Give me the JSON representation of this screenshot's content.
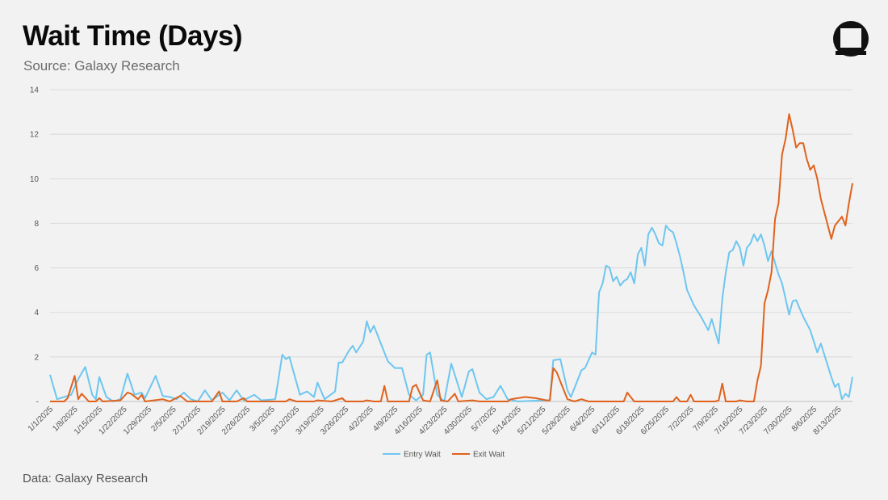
{
  "title": "Wait Time (Days)",
  "subtitle": "Source: Galaxy Research",
  "footer": "Data: Galaxy Research",
  "chart_data": {
    "type": "line",
    "title": "Wait Time (Days)",
    "xlabel": "",
    "ylabel": "",
    "ylim": [
      0,
      14
    ],
    "yticks": [
      0,
      2,
      4,
      6,
      8,
      10,
      12,
      14
    ],
    "grid": "horizontal",
    "legend_position": "bottom-center",
    "x_start": "1/1/2025",
    "x_end": "8/13/2025",
    "x_tick_labels": [
      "1/1/2025",
      "1/8/2025",
      "1/15/2025",
      "1/22/2025",
      "1/29/2025",
      "2/5/2025",
      "2/12/2025",
      "2/19/2025",
      "2/26/2025",
      "3/5/2025",
      "3/12/2025",
      "3/19/2025",
      "3/26/2025",
      "4/2/2025",
      "4/9/2025",
      "4/16/2025",
      "4/23/2025",
      "4/30/2025",
      "5/7/2025",
      "5/14/2025",
      "5/21/2025",
      "5/28/2025",
      "6/4/2025",
      "6/11/2025",
      "6/18/2025",
      "6/25/2025",
      "7/2/2025",
      "7/9/2025",
      "7/16/2025",
      "7/23/2025",
      "7/30/2025",
      "8/6/2025",
      "8/13/2025"
    ],
    "series": [
      {
        "name": "Entry Wait",
        "color": "#6ec6f0",
        "points": [
          [
            "1/1/2025",
            1.2
          ],
          [
            "1/3/2025",
            0.1
          ],
          [
            "1/5/2025",
            0.2
          ],
          [
            "1/7/2025",
            0.3
          ],
          [
            "1/9/2025",
            1.0
          ],
          [
            "1/11/2025",
            1.55
          ],
          [
            "1/13/2025",
            0.3
          ],
          [
            "1/14/2025",
            0.1
          ],
          [
            "1/15/2025",
            1.1
          ],
          [
            "1/17/2025",
            0.2
          ],
          [
            "1/19/2025",
            0.0
          ],
          [
            "1/21/2025",
            0.1
          ],
          [
            "1/23/2025",
            1.25
          ],
          [
            "1/25/2025",
            0.3
          ],
          [
            "1/27/2025",
            0.4
          ],
          [
            "1/28/2025",
            0.15
          ],
          [
            "1/31/2025",
            1.15
          ],
          [
            "2/2/2025",
            0.25
          ],
          [
            "2/4/2025",
            0.2
          ],
          [
            "2/6/2025",
            0.1
          ],
          [
            "2/8/2025",
            0.4
          ],
          [
            "2/10/2025",
            0.1
          ],
          [
            "2/12/2025",
            0.0
          ],
          [
            "2/14/2025",
            0.5
          ],
          [
            "2/16/2025",
            0.05
          ],
          [
            "2/19/2025",
            0.4
          ],
          [
            "2/21/2025",
            0.05
          ],
          [
            "2/23/2025",
            0.5
          ],
          [
            "2/25/2025",
            0.05
          ],
          [
            "2/28/2025",
            0.3
          ],
          [
            "3/2/2025",
            0.05
          ],
          [
            "3/6/2025",
            0.1
          ],
          [
            "3/8/2025",
            2.1
          ],
          [
            "3/9/2025",
            1.9
          ],
          [
            "3/10/2025",
            2.0
          ],
          [
            "3/13/2025",
            0.3
          ],
          [
            "3/15/2025",
            0.45
          ],
          [
            "3/17/2025",
            0.2
          ],
          [
            "3/18/2025",
            0.85
          ],
          [
            "3/20/2025",
            0.1
          ],
          [
            "3/23/2025",
            0.45
          ],
          [
            "3/24/2025",
            1.75
          ],
          [
            "3/25/2025",
            1.75
          ],
          [
            "3/27/2025",
            2.3
          ],
          [
            "3/28/2025",
            2.5
          ],
          [
            "3/29/2025",
            2.2
          ],
          [
            "3/31/2025",
            2.7
          ],
          [
            "4/1/2025",
            3.6
          ],
          [
            "4/2/2025",
            3.1
          ],
          [
            "4/3/2025",
            3.4
          ],
          [
            "4/5/2025",
            2.6
          ],
          [
            "4/7/2025",
            1.8
          ],
          [
            "4/9/2025",
            1.5
          ],
          [
            "4/11/2025",
            1.5
          ],
          [
            "4/13/2025",
            0.3
          ],
          [
            "4/15/2025",
            0.05
          ],
          [
            "4/17/2025",
            0.3
          ],
          [
            "4/18/2025",
            2.1
          ],
          [
            "4/19/2025",
            2.2
          ],
          [
            "4/21/2025",
            0.3
          ],
          [
            "4/23/2025",
            0.0
          ],
          [
            "4/25/2025",
            1.7
          ],
          [
            "4/28/2025",
            0.2
          ],
          [
            "4/30/2025",
            1.35
          ],
          [
            "5/1/2025",
            1.45
          ],
          [
            "5/3/2025",
            0.4
          ],
          [
            "5/5/2025",
            0.1
          ],
          [
            "5/7/2025",
            0.2
          ],
          [
            "5/9/2025",
            0.7
          ],
          [
            "5/11/2025",
            0.1
          ],
          [
            "5/14/2025",
            0.0
          ],
          [
            "5/21/2025",
            0.05
          ],
          [
            "5/23/2025",
            0.05
          ],
          [
            "5/24/2025",
            1.85
          ],
          [
            "5/26/2025",
            1.9
          ],
          [
            "5/28/2025",
            0.5
          ],
          [
            "5/29/2025",
            0.2
          ],
          [
            "5/30/2025",
            0.6
          ],
          [
            "6/1/2025",
            1.4
          ],
          [
            "6/2/2025",
            1.5
          ],
          [
            "6/4/2025",
            2.2
          ],
          [
            "6/5/2025",
            2.1
          ],
          [
            "6/6/2025",
            4.9
          ],
          [
            "6/7/2025",
            5.3
          ],
          [
            "6/8/2025",
            6.1
          ],
          [
            "6/9/2025",
            6.0
          ],
          [
            "6/10/2025",
            5.4
          ],
          [
            "6/11/2025",
            5.6
          ],
          [
            "6/12/2025",
            5.2
          ],
          [
            "6/13/2025",
            5.4
          ],
          [
            "6/14/2025",
            5.5
          ],
          [
            "6/15/2025",
            5.8
          ],
          [
            "6/16/2025",
            5.3
          ],
          [
            "6/17/2025",
            6.6
          ],
          [
            "6/18/2025",
            6.9
          ],
          [
            "6/19/2025",
            6.1
          ],
          [
            "6/20/2025",
            7.5
          ],
          [
            "6/21/2025",
            7.8
          ],
          [
            "6/22/2025",
            7.5
          ],
          [
            "6/23/2025",
            7.1
          ],
          [
            "6/24/2025",
            7.0
          ],
          [
            "6/25/2025",
            7.9
          ],
          [
            "6/26/2025",
            7.7
          ],
          [
            "6/27/2025",
            7.6
          ],
          [
            "6/28/2025",
            7.1
          ],
          [
            "6/29/2025",
            6.5
          ],
          [
            "6/30/2025",
            5.8
          ],
          [
            "7/1/2025",
            5.0
          ],
          [
            "7/3/2025",
            4.3
          ],
          [
            "7/5/2025",
            3.8
          ],
          [
            "7/7/2025",
            3.2
          ],
          [
            "7/8/2025",
            3.7
          ],
          [
            "7/10/2025",
            2.6
          ],
          [
            "7/11/2025",
            4.6
          ],
          [
            "7/12/2025",
            5.8
          ],
          [
            "7/13/2025",
            6.7
          ],
          [
            "7/14/2025",
            6.8
          ],
          [
            "7/15/2025",
            7.2
          ],
          [
            "7/16/2025",
            6.9
          ],
          [
            "7/17/2025",
            6.1
          ],
          [
            "7/18/2025",
            6.9
          ],
          [
            "7/19/2025",
            7.1
          ],
          [
            "7/20/2025",
            7.5
          ],
          [
            "7/21/2025",
            7.2
          ],
          [
            "7/22/2025",
            7.5
          ],
          [
            "7/23/2025",
            7.0
          ],
          [
            "7/24/2025",
            6.3
          ],
          [
            "7/25/2025",
            6.75
          ],
          [
            "7/27/2025",
            5.7
          ],
          [
            "7/28/2025",
            5.3
          ],
          [
            "7/29/2025",
            4.6
          ],
          [
            "7/30/2025",
            3.9
          ],
          [
            "7/31/2025",
            4.5
          ],
          [
            "8/1/2025",
            4.55
          ],
          [
            "8/3/2025",
            3.8
          ],
          [
            "8/5/2025",
            3.2
          ],
          [
            "8/7/2025",
            2.2
          ],
          [
            "8/8/2025",
            2.6
          ],
          [
            "8/10/2025",
            1.6
          ],
          [
            "8/11/2025",
            1.1
          ],
          [
            "8/12/2025",
            0.65
          ],
          [
            "8/13/2025",
            0.8
          ],
          [
            "8/14/2025",
            0.1
          ],
          [
            "8/15/2025",
            0.35
          ],
          [
            "8/16/2025",
            0.2
          ],
          [
            "8/17/2025",
            1.1
          ]
        ]
      },
      {
        "name": "Exit Wait",
        "color": "#e0621c",
        "points": [
          [
            "1/1/2025",
            0.0
          ],
          [
            "1/5/2025",
            0.0
          ],
          [
            "1/6/2025",
            0.15
          ],
          [
            "1/8/2025",
            1.15
          ],
          [
            "1/9/2025",
            0.1
          ],
          [
            "1/10/2025",
            0.35
          ],
          [
            "1/12/2025",
            0.0
          ],
          [
            "1/14/2025",
            0.0
          ],
          [
            "1/15/2025",
            0.15
          ],
          [
            "1/16/2025",
            0.0
          ],
          [
            "1/21/2025",
            0.05
          ],
          [
            "1/23/2025",
            0.4
          ],
          [
            "1/24/2025",
            0.35
          ],
          [
            "1/26/2025",
            0.1
          ],
          [
            "1/27/2025",
            0.3
          ],
          [
            "1/28/2025",
            0.0
          ],
          [
            "2/2/2025",
            0.1
          ],
          [
            "2/4/2025",
            0.0
          ],
          [
            "2/7/2025",
            0.25
          ],
          [
            "2/9/2025",
            0.0
          ],
          [
            "2/16/2025",
            0.0
          ],
          [
            "2/18/2025",
            0.45
          ],
          [
            "2/19/2025",
            0.0
          ],
          [
            "2/23/2025",
            0.0
          ],
          [
            "2/25/2025",
            0.15
          ],
          [
            "2/26/2025",
            0.0
          ],
          [
            "3/9/2025",
            0.0
          ],
          [
            "3/10/2025",
            0.1
          ],
          [
            "3/12/2025",
            0.0
          ],
          [
            "3/17/2025",
            0.0
          ],
          [
            "3/18/2025",
            0.05
          ],
          [
            "3/22/2025",
            0.0
          ],
          [
            "3/25/2025",
            0.15
          ],
          [
            "3/26/2025",
            0.0
          ],
          [
            "3/31/2025",
            0.0
          ],
          [
            "4/1/2025",
            0.05
          ],
          [
            "4/3/2025",
            0.0
          ],
          [
            "4/5/2025",
            0.0
          ],
          [
            "4/6/2025",
            0.7
          ],
          [
            "4/7/2025",
            0.0
          ],
          [
            "4/13/2025",
            0.0
          ],
          [
            "4/14/2025",
            0.65
          ],
          [
            "4/15/2025",
            0.75
          ],
          [
            "4/17/2025",
            0.05
          ],
          [
            "4/19/2025",
            0.0
          ],
          [
            "4/21/2025",
            0.95
          ],
          [
            "4/22/2025",
            0.05
          ],
          [
            "4/24/2025",
            0.0
          ],
          [
            "4/26/2025",
            0.35
          ],
          [
            "4/27/2025",
            0.0
          ],
          [
            "5/1/2025",
            0.05
          ],
          [
            "5/3/2025",
            0.0
          ],
          [
            "5/11/2025",
            0.0
          ],
          [
            "5/12/2025",
            0.1
          ],
          [
            "5/16/2025",
            0.2
          ],
          [
            "5/19/2025",
            0.15
          ],
          [
            "5/22/2025",
            0.05
          ],
          [
            "5/23/2025",
            0.05
          ],
          [
            "5/24/2025",
            1.5
          ],
          [
            "5/25/2025",
            1.3
          ],
          [
            "5/26/2025",
            0.9
          ],
          [
            "5/28/2025",
            0.1
          ],
          [
            "5/30/2025",
            0.0
          ],
          [
            "6/1/2025",
            0.1
          ],
          [
            "6/3/2025",
            0.0
          ],
          [
            "6/13/2025",
            0.0
          ],
          [
            "6/14/2025",
            0.4
          ],
          [
            "6/15/2025",
            0.2
          ],
          [
            "6/16/2025",
            0.0
          ],
          [
            "6/27/2025",
            0.0
          ],
          [
            "6/28/2025",
            0.2
          ],
          [
            "6/29/2025",
            0.0
          ],
          [
            "7/1/2025",
            0.0
          ],
          [
            "7/2/2025",
            0.3
          ],
          [
            "7/3/2025",
            0.0
          ],
          [
            "7/9/2025",
            0.0
          ],
          [
            "7/10/2025",
            0.05
          ],
          [
            "7/11/2025",
            0.8
          ],
          [
            "7/12/2025",
            0.0
          ],
          [
            "7/15/2025",
            0.0
          ],
          [
            "7/16/2025",
            0.05
          ],
          [
            "7/18/2025",
            0.0
          ],
          [
            "7/20/2025",
            0.0
          ],
          [
            "7/21/2025",
            0.95
          ],
          [
            "7/22/2025",
            1.6
          ],
          [
            "7/23/2025",
            4.4
          ],
          [
            "7/24/2025",
            5.0
          ],
          [
            "7/25/2025",
            5.8
          ],
          [
            "7/26/2025",
            8.2
          ],
          [
            "7/27/2025",
            8.9
          ],
          [
            "7/28/2025",
            11.1
          ],
          [
            "7/29/2025",
            11.8
          ],
          [
            "7/30/2025",
            12.9
          ],
          [
            "7/31/2025",
            12.2
          ],
          [
            "8/1/2025",
            11.4
          ],
          [
            "8/2/2025",
            11.6
          ],
          [
            "8/3/2025",
            11.6
          ],
          [
            "8/4/2025",
            10.9
          ],
          [
            "8/5/2025",
            10.4
          ],
          [
            "8/6/2025",
            10.6
          ],
          [
            "8/7/2025",
            10.0
          ],
          [
            "8/8/2025",
            9.1
          ],
          [
            "8/9/2025",
            8.5
          ],
          [
            "8/10/2025",
            7.9
          ],
          [
            "8/11/2025",
            7.3
          ],
          [
            "8/12/2025",
            7.9
          ],
          [
            "8/13/2025",
            8.1
          ],
          [
            "8/14/2025",
            8.3
          ],
          [
            "8/15/2025",
            7.9
          ],
          [
            "8/16/2025",
            8.9
          ],
          [
            "8/17/2025",
            9.8
          ]
        ]
      }
    ]
  }
}
